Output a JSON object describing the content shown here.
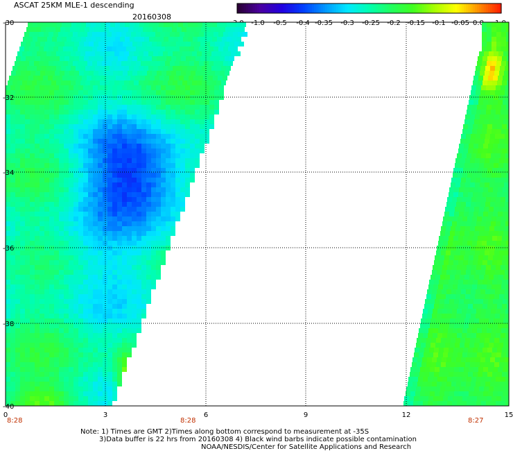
{
  "header": {
    "title": "ASCAT 25KM MLE-1 descending",
    "date": "20160308"
  },
  "colorbar": {
    "tick_labels": [
      "-3.0",
      "-1.0",
      "-0.5",
      "-0.4",
      "-0.35",
      "-0.3",
      "-0.25",
      "-0.2",
      "-0.15",
      "-0.1",
      "-0.05",
      "0.0",
      "1.0"
    ],
    "colors": [
      "#2a0035",
      "#4a00a0",
      "#2200e0",
      "#0040ff",
      "#0098ff",
      "#00e8ff",
      "#00ffb0",
      "#20ff60",
      "#40ff20",
      "#a8ff00",
      "#ffff00",
      "#ff9000",
      "#ff2000"
    ]
  },
  "axes": {
    "x_ticks": [
      "0",
      "3",
      "6",
      "9",
      "12",
      "15"
    ],
    "y_ticks": [
      "-30",
      "-32",
      "-34",
      "-36",
      "-38",
      "-40"
    ],
    "time_labels": [
      "8:28",
      "8:28",
      "8:27"
    ]
  },
  "notes": {
    "line1": "Note: 1) Times are GMT 2)Times along bottom correspond to measurement at -35S",
    "line2": "3)Data buffer is 22 hrs from 20160308 4) Black wind barbs indicate possible contamination",
    "line3": "NOAA/NESDIS/Center for Satellite Applications and Research"
  }
}
